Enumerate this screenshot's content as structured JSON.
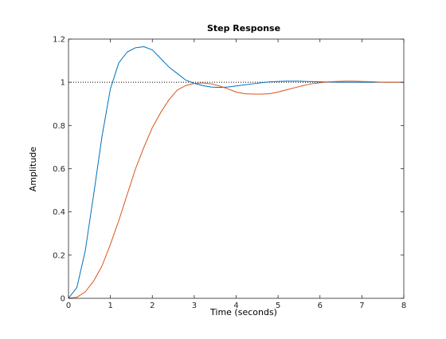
{
  "chart_data": {
    "type": "line",
    "title": "Step Response",
    "xlabel": "Time (seconds)",
    "ylabel": "Amplitude",
    "xlim": [
      0,
      8
    ],
    "ylim": [
      0,
      1.2
    ],
    "xticks": [
      "0",
      "1",
      "2",
      "3",
      "4",
      "5",
      "6",
      "7",
      "8"
    ],
    "yticks": [
      "0",
      "0.2",
      "0.4",
      "0.6",
      "0.8",
      "1",
      "1.2"
    ],
    "grid": false,
    "reference_line": {
      "y": 1,
      "style": "dotted",
      "color": "#000000"
    },
    "series": [
      {
        "color": "#0072BD",
        "x": [
          0,
          0.2,
          0.4,
          0.6,
          0.8,
          1.0,
          1.2,
          1.4,
          1.6,
          1.8,
          2.0,
          2.2,
          2.4,
          2.6,
          2.8,
          3.0,
          3.2,
          3.4,
          3.6,
          3.8,
          4.0,
          4.2,
          4.4,
          4.6,
          4.8,
          5.0,
          5.2,
          5.5,
          6.0,
          6.5,
          7.0,
          7.5,
          8.0
        ],
        "y": [
          0,
          0.05,
          0.22,
          0.48,
          0.75,
          0.97,
          1.09,
          1.14,
          1.16,
          1.165,
          1.15,
          1.11,
          1.07,
          1.04,
          1.01,
          0.995,
          0.985,
          0.978,
          0.976,
          0.978,
          0.983,
          0.988,
          0.993,
          0.998,
          1.002,
          1.004,
          1.005,
          1.005,
          1.002,
          1.0,
          1.0,
          1.0,
          1.0
        ]
      },
      {
        "color": "#D95319",
        "x": [
          0,
          0.2,
          0.4,
          0.6,
          0.8,
          1.0,
          1.2,
          1.4,
          1.6,
          1.8,
          2.0,
          2.2,
          2.4,
          2.6,
          2.8,
          3.0,
          3.2,
          3.4,
          3.6,
          3.8,
          4.0,
          4.2,
          4.4,
          4.6,
          4.8,
          5.0,
          5.2,
          5.4,
          5.6,
          5.8,
          6.0,
          6.2,
          6.4,
          6.6,
          6.8,
          7.0,
          7.2,
          7.4,
          7.6,
          7.8,
          8.0
        ],
        "y": [
          0,
          0.005,
          0.03,
          0.08,
          0.15,
          0.25,
          0.36,
          0.48,
          0.6,
          0.7,
          0.79,
          0.86,
          0.92,
          0.965,
          0.985,
          0.995,
          0.997,
          0.993,
          0.983,
          0.97,
          0.955,
          0.947,
          0.945,
          0.945,
          0.947,
          0.955,
          0.965,
          0.975,
          0.985,
          0.993,
          0.998,
          1.002,
          1.004,
          1.005,
          1.005,
          1.004,
          1.003,
          1.001,
          1.0,
          1.0,
          1.0
        ]
      }
    ]
  }
}
